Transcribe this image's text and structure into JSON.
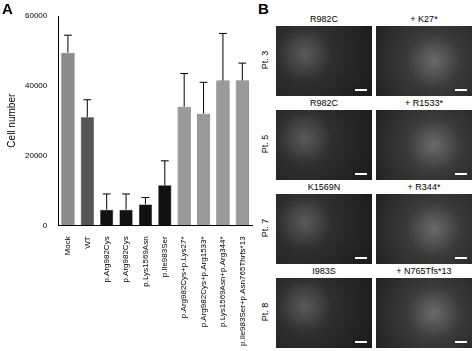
{
  "chart_data": {
    "type": "bar",
    "y_label": "Cell number",
    "categories": [
      "Mock",
      "WT",
      "p.Arg982Cys",
      "p.Arg982Cys",
      "p.Lys1569Asn",
      "p.Ile983Ser",
      "p.Arg982Cys+p.Lys27*",
      "p.Arg982Cys+p.Arg1533*",
      "p.Lys1569Asn+p.Arg344*",
      "p.Ile983Ser+p.Asn765Thrfs*13"
    ],
    "values": [
      49500,
      31000,
      4500,
      4500,
      6000,
      11500,
      34000,
      32000,
      41500,
      41500
    ],
    "errors": [
      5000,
      5000,
      4500,
      4500,
      2000,
      7000,
      9500,
      9000,
      13500,
      5000
    ],
    "colors": [
      "#8c8c8c",
      "#555555",
      "#111111",
      "#111111",
      "#111111",
      "#111111",
      "#9a9a9a",
      "#9a9a9a",
      "#9a9a9a",
      "#9a9a9a"
    ],
    "ylim": [
      0,
      60000
    ],
    "yticks": [
      0,
      20000,
      40000,
      60000
    ],
    "grid": false
  },
  "panel_labels": [
    "A",
    "B"
  ],
  "images": [
    {
      "patient": "Pt. 3",
      "left": "R982C",
      "right": "+ K27*"
    },
    {
      "patient": "Pt. 5",
      "left": "R982C",
      "right": "+ R1533*"
    },
    {
      "patient": "Pt. 7",
      "left": "K1569N",
      "right": "+ R344*"
    },
    {
      "patient": "Pt. 8",
      "left": "I983S",
      "right": "+ N765Tfs*13"
    }
  ]
}
